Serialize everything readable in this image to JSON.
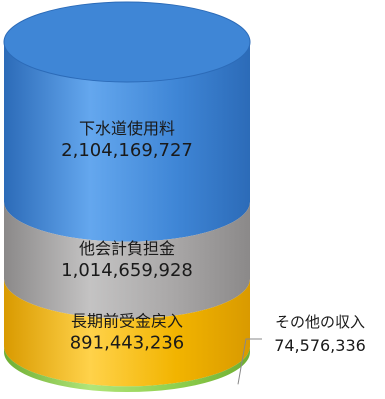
{
  "chart_data": {
    "type": "stacked-cylinder",
    "title": "",
    "total_order": "top-to-bottom",
    "series": [
      {
        "name": "下水道使用料",
        "value": 2104169727,
        "value_label": "2,104,169,727",
        "color": "#3f86d6",
        "color_dark": "#2c6bb8",
        "color_light": "#64a7ee",
        "placement": "inside"
      },
      {
        "name": "他会計負担金",
        "value": 1014659928,
        "value_label": "1,014,659,928",
        "color": "#a8a6a6",
        "color_dark": "#8b8989",
        "color_light": "#c4c3c3",
        "placement": "inside"
      },
      {
        "name": "長期前受金戻入",
        "value": 891443236,
        "value_label": "891,443,236",
        "color": "#f2b400",
        "color_dark": "#d99a00",
        "color_light": "#ffd24a",
        "placement": "inside"
      },
      {
        "name": "その他の収入",
        "value": 74576336,
        "value_label": "74,576,336",
        "color": "#8fcf4e",
        "color_dark": "#6fae32",
        "color_light": "#b0e57a",
        "placement": "outside-right"
      }
    ]
  }
}
